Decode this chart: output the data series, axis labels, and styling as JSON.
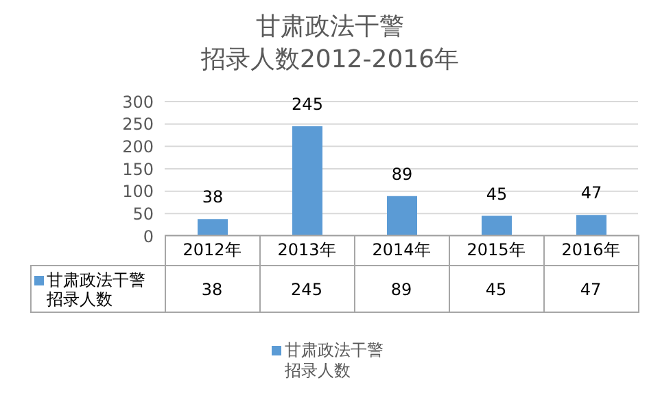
{
  "chart_data": {
    "type": "bar",
    "title": "甘肃政法干警",
    "subtitle": "招录人数2012-2016年",
    "categories": [
      "2012年",
      "2013年",
      "2014年",
      "2015年",
      "2016年"
    ],
    "series": [
      {
        "name": "甘肃政法干警招录人数",
        "color": "#5b9bd5",
        "values": [
          38,
          245,
          89,
          45,
          47
        ],
        "value_labels": [
          "38",
          "245",
          "89",
          "45",
          "47"
        ]
      }
    ],
    "annotations": [
      "38",
      "245",
      "89",
      "45",
      "47"
    ],
    "ylim": [
      0,
      300
    ],
    "yticks": [
      0,
      50,
      100,
      150,
      200,
      250,
      300
    ],
    "grid": "y",
    "legend": "bottom"
  }
}
